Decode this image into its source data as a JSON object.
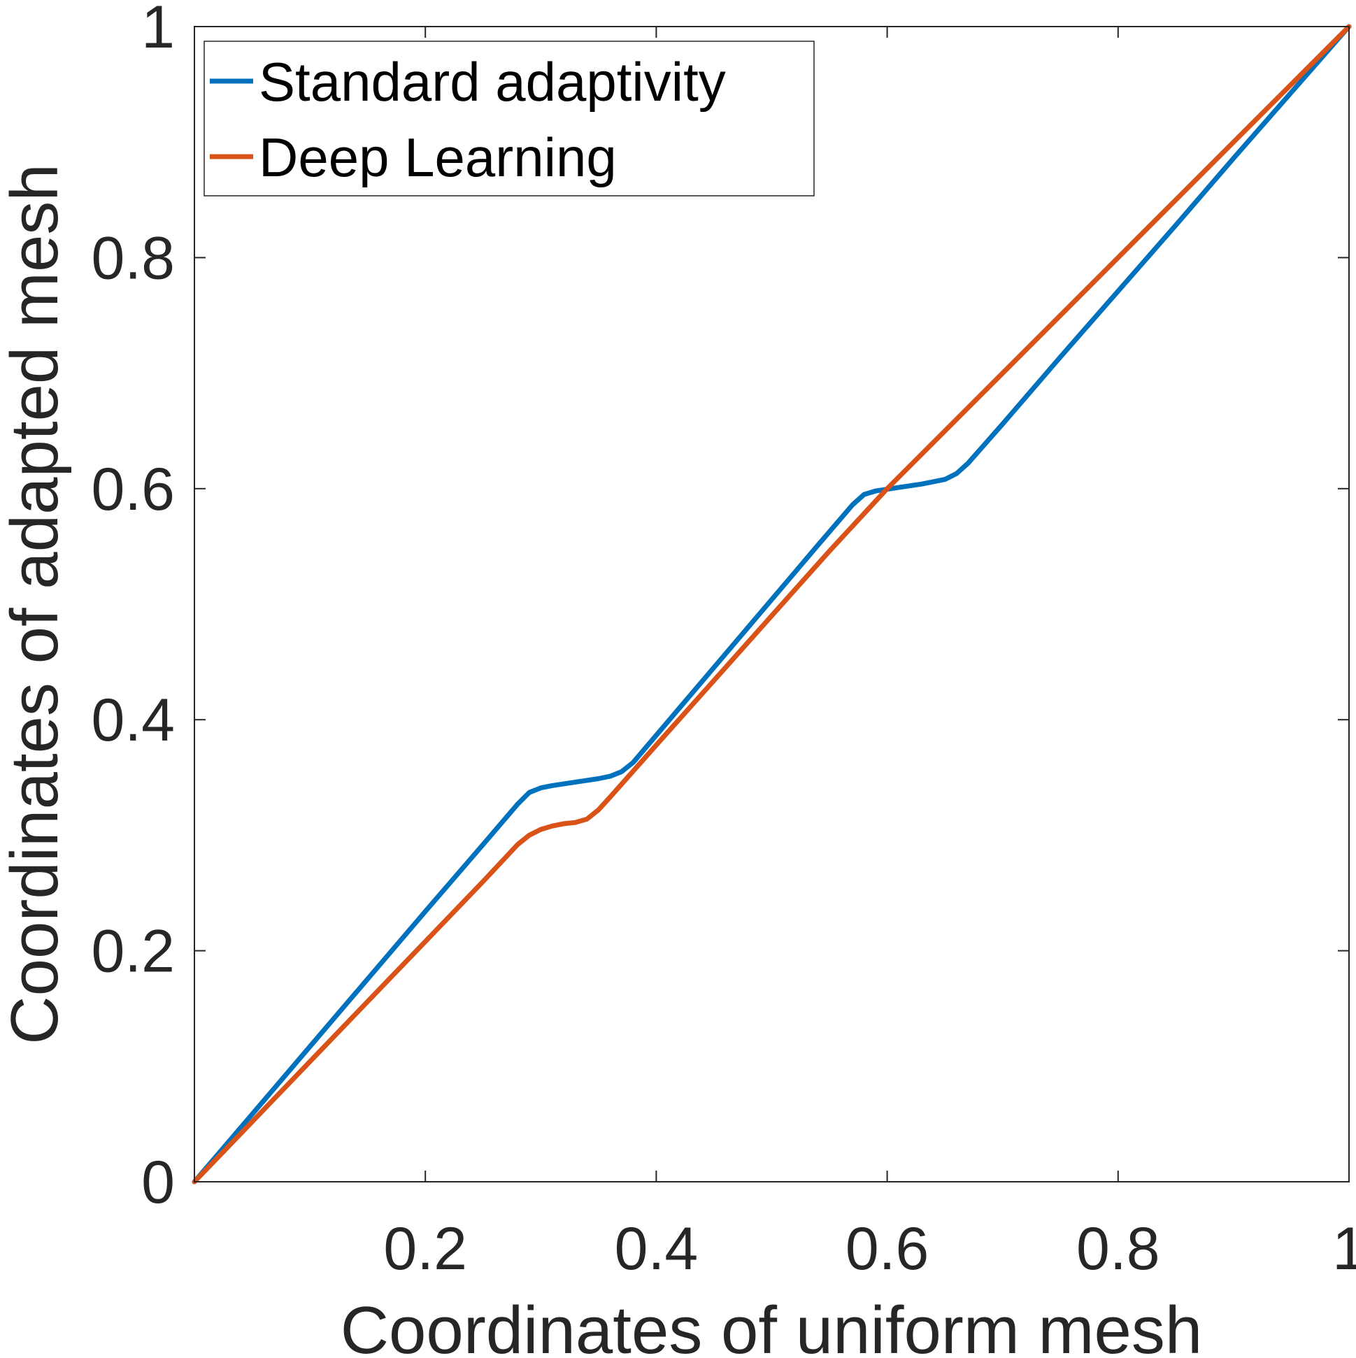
{
  "chart_data": {
    "type": "line",
    "title": "",
    "xlabel": "Coordinates of uniform mesh",
    "ylabel": "Coordinates of adapted mesh",
    "xlim": [
      0,
      1
    ],
    "ylim": [
      0,
      1
    ],
    "xticks": [
      0.2,
      0.4,
      0.6,
      0.8,
      1
    ],
    "xtick_labels": [
      "0.2",
      "0.4",
      "0.6",
      "0.8",
      "1"
    ],
    "yticks": [
      0,
      0.2,
      0.4,
      0.6,
      0.8,
      1
    ],
    "ytick_labels": [
      "0",
      "0.2",
      "0.4",
      "0.6",
      "0.8",
      "1"
    ],
    "grid": false,
    "legend_position": "top-left",
    "series": [
      {
        "name": "Standard adaptivity",
        "color": "#0072bd",
        "x": [
          0,
          0.05,
          0.1,
          0.15,
          0.2,
          0.25,
          0.28,
          0.29,
          0.3,
          0.31,
          0.33,
          0.35,
          0.36,
          0.37,
          0.38,
          0.42,
          0.46,
          0.5,
          0.54,
          0.57,
          0.58,
          0.59,
          0.61,
          0.63,
          0.65,
          0.66,
          0.67,
          0.7,
          0.75,
          0.8,
          0.85,
          0.9,
          0.95,
          1
        ],
        "y": [
          0,
          0.0585,
          0.117,
          0.1755,
          0.234,
          0.292,
          0.327,
          0.337,
          0.341,
          0.343,
          0.346,
          0.349,
          0.351,
          0.355,
          0.363,
          0.41,
          0.457,
          0.504,
          0.551,
          0.586,
          0.595,
          0.598,
          0.601,
          0.604,
          0.608,
          0.613,
          0.622,
          0.656,
          0.714,
          0.771,
          0.828,
          0.886,
          0.943,
          1
        ]
      },
      {
        "name": "Deep Learning",
        "color": "#d95319",
        "x": [
          0,
          0.05,
          0.1,
          0.15,
          0.2,
          0.25,
          0.28,
          0.29,
          0.3,
          0.31,
          0.32,
          0.33,
          0.34,
          0.35,
          0.36,
          0.4,
          0.45,
          0.5,
          0.55,
          0.6,
          0.62,
          0.65,
          0.7,
          0.75,
          0.8,
          0.85,
          0.9,
          0.95,
          1
        ],
        "y": [
          0,
          0.052,
          0.104,
          0.156,
          0.208,
          0.26,
          0.292,
          0.3,
          0.305,
          0.308,
          0.31,
          0.311,
          0.314,
          0.322,
          0.333,
          0.378,
          0.434,
          0.49,
          0.546,
          0.6,
          0.62,
          0.65,
          0.7,
          0.75,
          0.8,
          0.85,
          0.9,
          0.95,
          1
        ]
      }
    ]
  }
}
